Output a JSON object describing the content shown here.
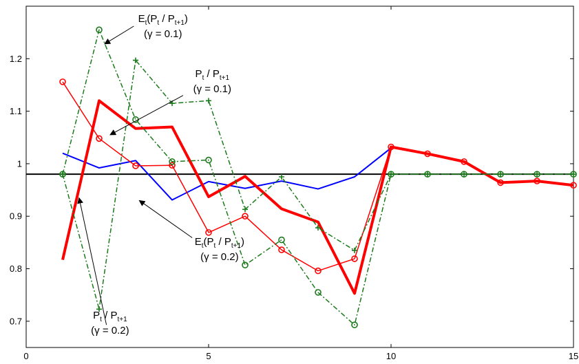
{
  "chart_data": {
    "type": "line",
    "xlim": [
      0,
      15
    ],
    "ylim": [
      0.65,
      1.3
    ],
    "xticks": [
      0,
      5,
      10,
      15
    ],
    "yticks": [
      0.7,
      0.8,
      0.9,
      1.0,
      1.1,
      1.2
    ],
    "xtick_labels": [
      "0",
      "5",
      "10",
      "15"
    ],
    "ytick_labels": [
      "0.7",
      "0.8",
      "0.9",
      "1",
      "1.1",
      "1.2"
    ],
    "grid": false,
    "series": [
      {
        "color": "#0000ff",
        "width": 2,
        "dash": "",
        "marker": "none",
        "x": [
          1,
          2,
          3,
          4,
          5,
          6,
          7,
          8,
          9,
          10
        ],
        "y": [
          1.02,
          0.992,
          1.006,
          0.931,
          0.966,
          0.953,
          0.967,
          0.952,
          0.975,
          1.03
        ]
      },
      {
        "color": "#ff0000",
        "width": 4,
        "dash": "",
        "marker": "none",
        "x": [
          1,
          2,
          3,
          4,
          5,
          6,
          7,
          8,
          9,
          10,
          11,
          12,
          13,
          14,
          15
        ],
        "y": [
          0.817,
          1.12,
          1.067,
          1.07,
          0.937,
          0.976,
          0.914,
          0.889,
          0.753,
          1.032,
          1.019,
          1.004,
          0.964,
          0.967,
          0.959
        ]
      },
      {
        "color": "#ff0000",
        "width": 1.5,
        "dash": "",
        "marker": "circle",
        "x": [
          1,
          2,
          3,
          4,
          5,
          6,
          7,
          8,
          9,
          10,
          11,
          12,
          13,
          14,
          15
        ],
        "y": [
          1.156,
          1.048,
          0.996,
          0.997,
          0.869,
          0.9,
          0.836,
          0.796,
          0.819,
          1.032,
          1.019,
          1.004,
          0.964,
          0.967,
          0.959
        ]
      },
      {
        "color": "#1a7a1a",
        "width": 1.5,
        "dash": "7 3 2 3",
        "marker": "plus",
        "x": [
          1,
          2,
          3,
          4,
          5,
          6,
          7,
          8,
          9,
          10,
          11,
          12,
          13,
          14,
          15
        ],
        "y": [
          0.98,
          0.723,
          1.197,
          1.115,
          1.12,
          0.913,
          0.975,
          0.878,
          0.835,
          0.98,
          0.98,
          0.98,
          0.98,
          0.98,
          0.98
        ]
      },
      {
        "color": "#1a7a1a",
        "width": 1.5,
        "dash": "7 3 2 3",
        "marker": "circle",
        "x": [
          1,
          2,
          3,
          4,
          5,
          6,
          7,
          8,
          9,
          10,
          11,
          12,
          13,
          14,
          15
        ],
        "y": [
          0.98,
          1.255,
          1.084,
          1.004,
          1.007,
          0.807,
          0.855,
          0.755,
          0.693,
          0.98,
          0.98,
          0.98,
          0.98,
          0.98,
          0.98
        ]
      }
    ],
    "hline": {
      "y": 0.98,
      "color": "#000000"
    },
    "annotations": [
      {
        "lines": [
          [
            {
              "t": "E",
              "s": ""
            },
            {
              "t": "t",
              "s": "sub"
            },
            {
              "t": "(P",
              "s": ""
            },
            {
              "t": "t",
              "s": "sub"
            },
            {
              "t": " / P",
              "s": ""
            },
            {
              "t": "t+1",
              "s": "sub"
            },
            {
              "t": ")",
              "s": ""
            }
          ],
          [
            {
              "t": "(γ = 0.1)",
              "s": ""
            }
          ]
        ],
        "label_x": 3.75,
        "label_y": 1.27,
        "arrow_from": [
          2.95,
          1.262
        ],
        "arrow_to": [
          2.15,
          1.228
        ]
      },
      {
        "lines": [
          [
            {
              "t": "P",
              "s": ""
            },
            {
              "t": "t",
              "s": "sub"
            },
            {
              "t": " / P",
              "s": ""
            },
            {
              "t": "t+1",
              "s": "sub"
            }
          ],
          [
            {
              "t": "(γ = 0.1)",
              "s": ""
            }
          ]
        ],
        "label_x": 5.1,
        "label_y": 1.165,
        "arrow_from": [
          4.3,
          1.13
        ],
        "arrow_to": [
          2.3,
          1.055
        ]
      },
      {
        "lines": [
          [
            {
              "t": "E",
              "s": ""
            },
            {
              "t": "t",
              "s": "sub"
            },
            {
              "t": "(P",
              "s": ""
            },
            {
              "t": "t",
              "s": "sub"
            },
            {
              "t": " / P",
              "s": ""
            },
            {
              "t": "t+1",
              "s": "sub"
            },
            {
              "t": ")",
              "s": ""
            }
          ],
          [
            {
              "t": "(γ = 0.2)",
              "s": ""
            }
          ]
        ],
        "label_x": 5.3,
        "label_y": 0.845,
        "arrow_from": [
          4.55,
          0.859
        ],
        "arrow_to": [
          3.1,
          0.93
        ]
      },
      {
        "lines": [
          [
            {
              "t": "P",
              "s": ""
            },
            {
              "t": "t",
              "s": "sub"
            },
            {
              "t": " / P",
              "s": ""
            },
            {
              "t": "t+1",
              "s": "sub"
            }
          ],
          [
            {
              "t": "(γ = 0.2)",
              "s": ""
            }
          ]
        ],
        "label_x": 2.3,
        "label_y": 0.705,
        "arrow_from": [
          2.2,
          0.693
        ],
        "arrow_to": [
          1.45,
          0.935
        ]
      }
    ]
  }
}
